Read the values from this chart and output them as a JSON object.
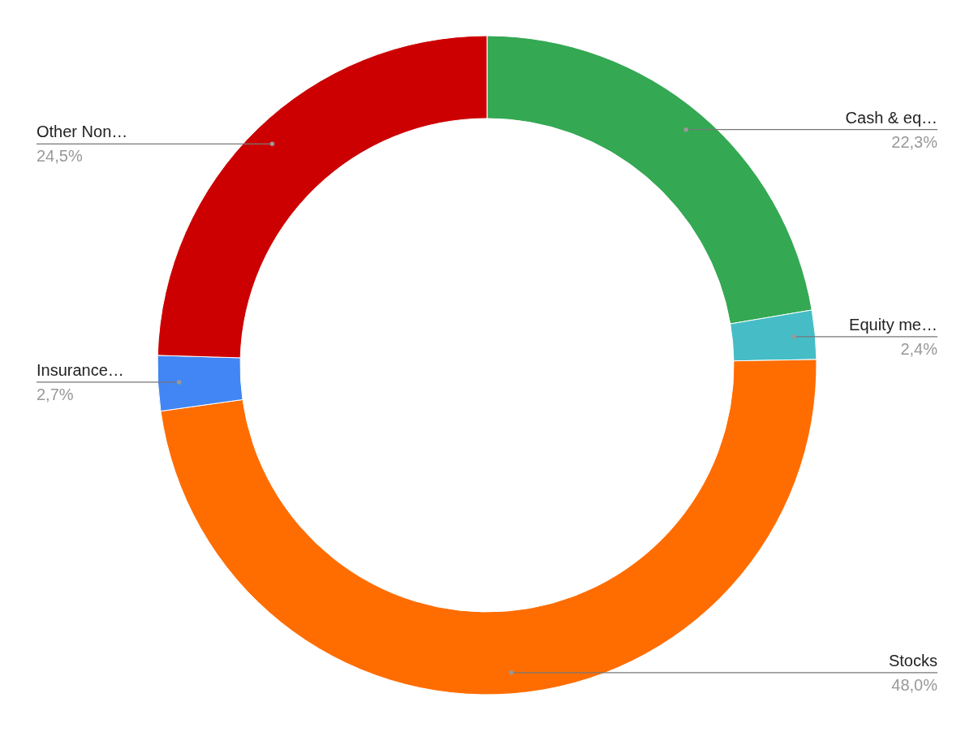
{
  "chart_data": {
    "type": "donut",
    "categories": [
      "Cash & eq…",
      "Equity me…",
      "Stocks",
      "Insurance…",
      "Other Non…"
    ],
    "values": [
      22.3,
      2.4,
      48.0,
      2.7,
      24.5
    ],
    "colors": [
      "#34a853",
      "#46bdc6",
      "#ff6d01",
      "#4285f4",
      "#cc0000"
    ],
    "value_labels": [
      "22,3%",
      "2,4%",
      "48,0%",
      "2,7%",
      "24,5%"
    ]
  }
}
